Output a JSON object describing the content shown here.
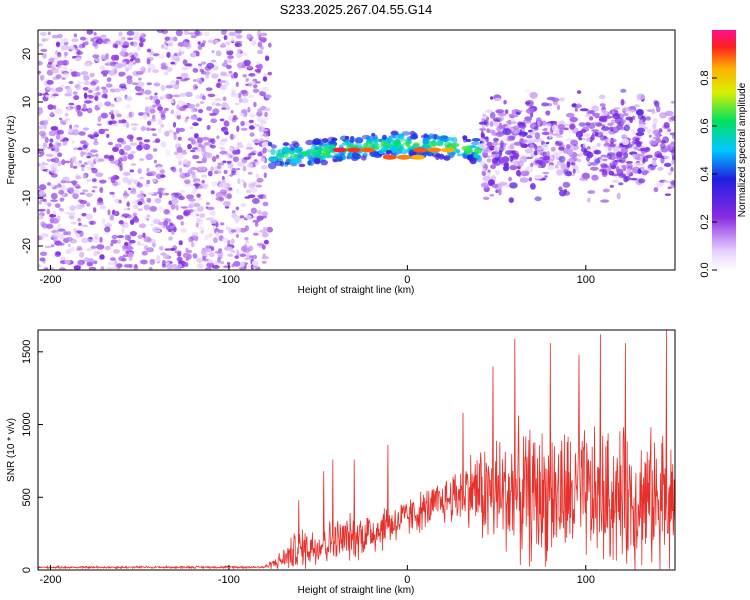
{
  "title": "S233.2025.267.04.55.G14",
  "chart_data": [
    {
      "type": "heatmap",
      "xlabel": "Height of straight line (km)",
      "ylabel": "Frequency (Hz)",
      "xlim": [
        -207,
        150
      ],
      "ylim": [
        -25,
        25
      ],
      "xticks": [
        -200,
        -100,
        0,
        100
      ],
      "yticks": [
        -20,
        -10,
        0,
        10,
        20
      ],
      "colorbar": {
        "label": "Normalized spectral amplitude",
        "range": [
          0,
          1
        ],
        "ticks": [
          "0.0",
          "0.2",
          "0.4",
          "0.6",
          "0.8"
        ],
        "tick_values": [
          0,
          0.2,
          0.4,
          0.6,
          0.8
        ]
      },
      "regions": [
        {
          "name": "noise",
          "x_range": [
            -207,
            -77
          ],
          "freq_range": [
            -25,
            25
          ],
          "amplitude": [
            0.05,
            0.25
          ]
        },
        {
          "name": "signal-band",
          "x_range": [
            -77,
            42
          ],
          "freq_center": 0,
          "freq_halfwidth": 3.5,
          "amplitude": [
            0.1,
            1.0
          ]
        },
        {
          "name": "noisy-band",
          "x_range": [
            42,
            150
          ],
          "freq_center": 1,
          "freq_halfwidth": 12,
          "amplitude": [
            0.05,
            0.3
          ]
        }
      ],
      "peaks": [
        {
          "x": -30,
          "freq": 0.0,
          "amplitude": 0.95
        },
        {
          "x": -2,
          "freq": -1.5,
          "amplitude": 0.9
        },
        {
          "x": 15,
          "freq": 0.0,
          "amplitude": 0.9
        }
      ]
    },
    {
      "type": "line",
      "xlabel": "Height of straight line (km)",
      "ylabel": "SNR (10 * v/v)",
      "xlim": [
        -207,
        150
      ],
      "ylim": [
        0,
        1650
      ],
      "xticks": [
        -200,
        -100,
        0,
        100
      ],
      "yticks": [
        0,
        500,
        1000,
        1500
      ],
      "color": "#e8302b",
      "profile": [
        {
          "x": -207,
          "mean": 18,
          "spread": 8
        },
        {
          "x": -80,
          "mean": 20,
          "spread": 10
        },
        {
          "x": -70,
          "mean": 70,
          "spread": 80
        },
        {
          "x": -62,
          "mean": 140,
          "spread": 170
        },
        {
          "x": -40,
          "mean": 200,
          "spread": 180
        },
        {
          "x": -20,
          "mean": 260,
          "spread": 200
        },
        {
          "x": 0,
          "mean": 360,
          "spread": 160
        },
        {
          "x": 20,
          "mean": 470,
          "spread": 180
        },
        {
          "x": 35,
          "mean": 560,
          "spread": 300
        },
        {
          "x": 45,
          "mean": 520,
          "spread": 450
        },
        {
          "x": 60,
          "mean": 520,
          "spread": 550
        },
        {
          "x": 100,
          "mean": 500,
          "spread": 550
        },
        {
          "x": 150,
          "mean": 480,
          "spread": 550
        }
      ],
      "spikes": [
        {
          "x": -61,
          "y": 480
        },
        {
          "x": -47,
          "y": 680
        },
        {
          "x": -42,
          "y": 760
        },
        {
          "x": -30,
          "y": 760
        },
        {
          "x": -11,
          "y": 860
        },
        {
          "x": 31,
          "y": 1080
        },
        {
          "x": 48,
          "y": 1400
        },
        {
          "x": 60,
          "y": 1590
        },
        {
          "x": 80,
          "y": 1560
        },
        {
          "x": 96,
          "y": 1480
        },
        {
          "x": 108,
          "y": 1620
        },
        {
          "x": 122,
          "y": 1560
        },
        {
          "x": 145,
          "y": 1660
        }
      ]
    }
  ]
}
